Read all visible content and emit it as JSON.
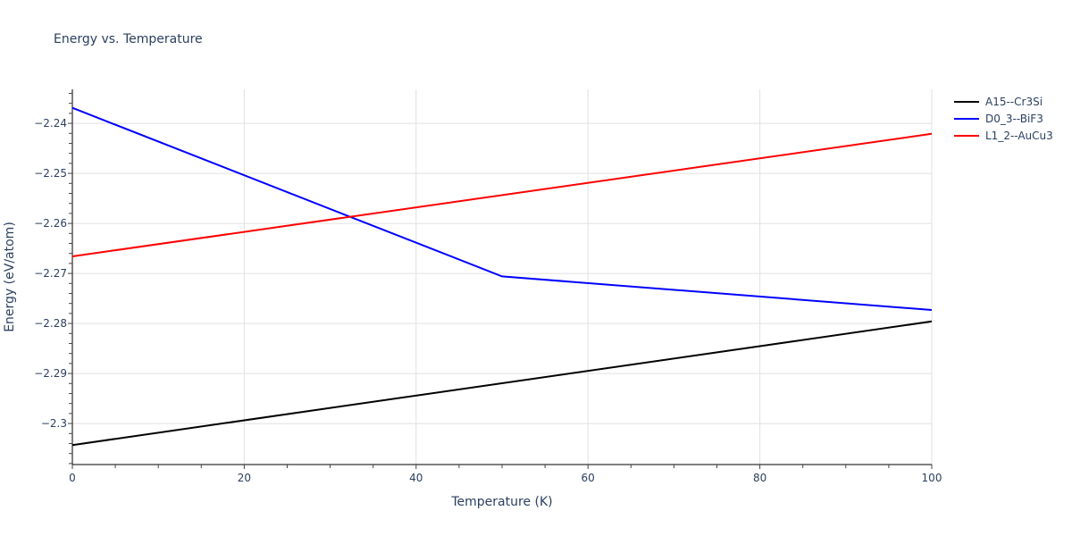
{
  "chart_data": {
    "type": "line",
    "title": "Energy vs. Temperature",
    "xlabel": "Temperature (K)",
    "ylabel": "Energy (eV/atom)",
    "xlim": [
      0,
      100
    ],
    "ylim": [
      -2.3082,
      -2.2332
    ],
    "x_ticks": [
      0,
      20,
      40,
      60,
      80,
      100
    ],
    "x_tick_labels": [
      "0",
      "20",
      "40",
      "60",
      "80",
      "100"
    ],
    "y_ticks": [
      -2.24,
      -2.25,
      -2.26,
      -2.27,
      -2.28,
      -2.29,
      -2.3
    ],
    "y_tick_labels": [
      "−2.24",
      "−2.25",
      "−2.26",
      "−2.27",
      "−2.28",
      "−2.29",
      "−2.3"
    ],
    "grid": true,
    "legend_position": "right",
    "series": [
      {
        "name": "A15--Cr3Si",
        "color": "#000000",
        "x": [
          0,
          100
        ],
        "values": [
          -2.3043,
          -2.2796
        ]
      },
      {
        "name": "D0_3--BiF3",
        "color": "#0000ff",
        "x": [
          0,
          50,
          100
        ],
        "values": [
          -2.2369,
          -2.2706,
          -2.2773
        ]
      },
      {
        "name": "L1_2--AuCu3",
        "color": "#ff0000",
        "x": [
          0,
          100
        ],
        "values": [
          -2.2666,
          -2.2421
        ]
      }
    ]
  },
  "legend": {
    "items": [
      {
        "label": "A15--Cr3Si",
        "color": "#000000"
      },
      {
        "label": "D0_3--BiF3",
        "color": "#0000ff"
      },
      {
        "label": "L1_2--AuCu3",
        "color": "#ff0000"
      }
    ]
  }
}
